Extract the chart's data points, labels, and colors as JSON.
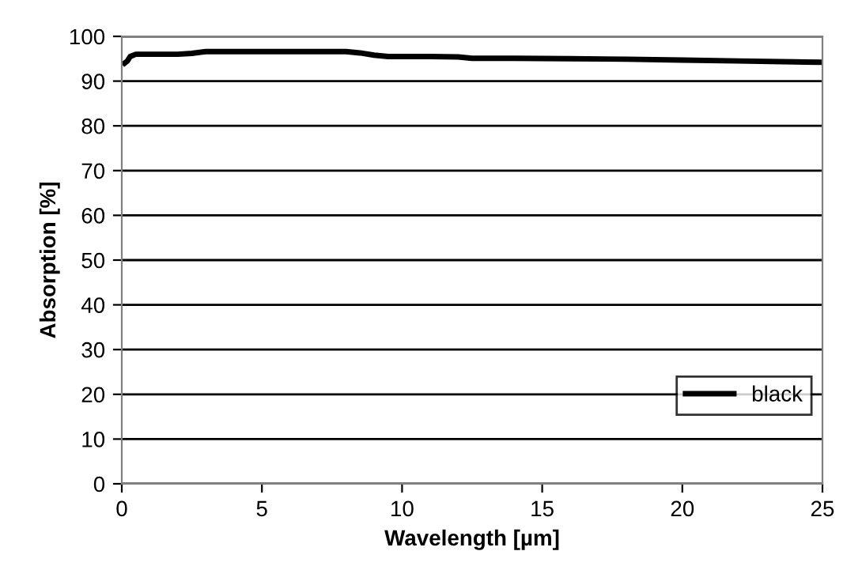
{
  "chart_data": {
    "type": "line",
    "xlabel": "Wavelength [µm]",
    "ylabel": "Absorption [%]",
    "xlim": [
      0,
      25
    ],
    "xticks": [
      0,
      5,
      10,
      15,
      20,
      25
    ],
    "ylim": [
      0,
      100
    ],
    "yticks": [
      0,
      10,
      20,
      30,
      40,
      50,
      60,
      70,
      80,
      90,
      100
    ],
    "grid": "y",
    "legend": "lower right",
    "marker": "none",
    "line_style": "solid",
    "series": [
      {
        "name": "black",
        "color": "#000000",
        "x": [
          0.1,
          0.2,
          0.3,
          0.5,
          1,
          2,
          2.5,
          3,
          5,
          7,
          8,
          8.5,
          9,
          9.5,
          10,
          11,
          12,
          12.5,
          14,
          16,
          18,
          20,
          22,
          24,
          25
        ],
        "values": [
          94,
          94.5,
          95.5,
          96,
          96,
          96,
          96.2,
          96.6,
          96.6,
          96.6,
          96.6,
          96.3,
          95.8,
          95.5,
          95.5,
          95.5,
          95.4,
          95.1,
          95.1,
          95,
          94.9,
          94.7,
          94.5,
          94.3,
          94.2
        ]
      }
    ]
  }
}
